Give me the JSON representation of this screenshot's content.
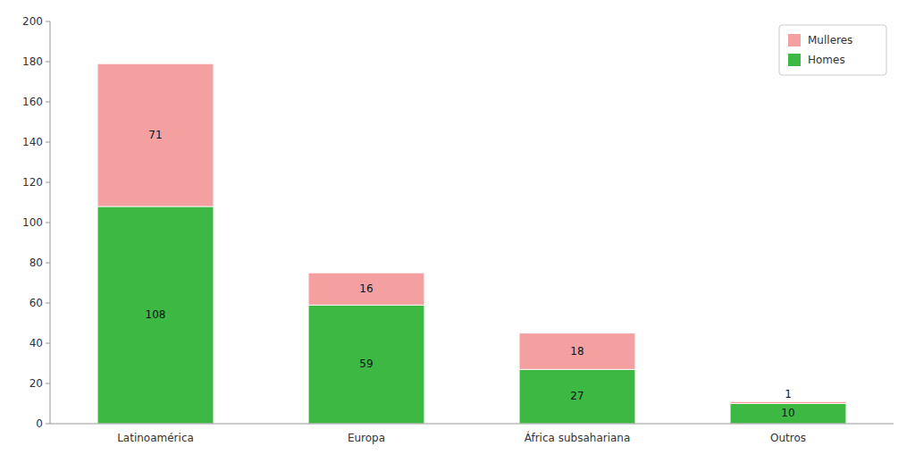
{
  "chart_data": {
    "type": "bar",
    "stacked": true,
    "categories": [
      "Latinoamérica",
      "Europa",
      "África subsahariana",
      "Outros"
    ],
    "series": [
      {
        "name": "Homes",
        "color": "#3CB843",
        "values": [
          108,
          59,
          27,
          10
        ]
      },
      {
        "name": "Mulleres",
        "color": "#F4A0A0",
        "values": [
          71,
          16,
          18,
          1
        ]
      }
    ],
    "ylim": [
      0,
      200
    ],
    "yticks": [
      0,
      20,
      40,
      60,
      80,
      100,
      120,
      140,
      160,
      180,
      200
    ],
    "grid": false,
    "legend": "upper right",
    "data_labels": true
  }
}
